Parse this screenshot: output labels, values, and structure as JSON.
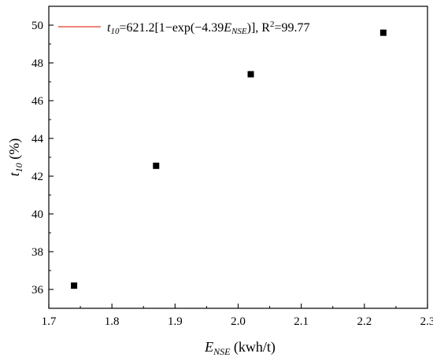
{
  "chart_data": {
    "type": "scatter",
    "x": [
      1.74,
      1.87,
      2.02,
      2.23
    ],
    "y": [
      36.2,
      42.55,
      47.4,
      49.6
    ],
    "xlim": [
      1.7,
      2.3
    ],
    "ylim": [
      35,
      51
    ],
    "xticks": [
      "1.7",
      "1.8",
      "1.9",
      "2.0",
      "2.1",
      "2.2",
      "2.3"
    ],
    "yticks": [
      "36",
      "38",
      "40",
      "42",
      "44",
      "46",
      "48",
      "50"
    ],
    "xlabel": {
      "main": "E",
      "sub": "NSE",
      "rest": " (kwh/t)"
    },
    "ylabel": {
      "main": "t",
      "sub": "10",
      "rest": " (%)"
    },
    "fit": {
      "a": 621.2,
      "b": 4.39,
      "x0": 1.742,
      "x1": 2.23,
      "color": "#e8382f"
    },
    "legend": {
      "position": "top-left",
      "t": "t",
      "t_sub": "10",
      "eq1": "=621.2[1−exp(−4.39",
      "e": "E",
      "e_sub": "NSE",
      "eq2": ")], R",
      "sup": "2",
      "eq3": "=99.77"
    },
    "marker_color": "#000000",
    "grid": false
  }
}
